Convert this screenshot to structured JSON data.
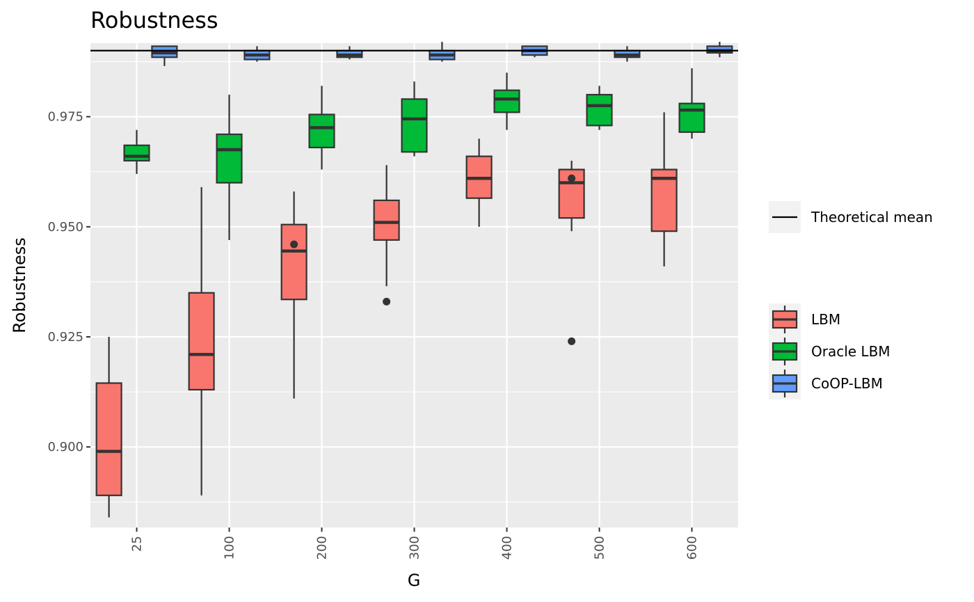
{
  "chart_data": {
    "type": "boxplot",
    "title": "Robustness",
    "xlabel": "G",
    "ylabel": "Robustness",
    "ylim": [
      0.8817,
      0.9917
    ],
    "yticks": [
      "0.900",
      "0.925",
      "0.950",
      "0.975"
    ],
    "categories": [
      "25",
      "100",
      "200",
      "300",
      "400",
      "500",
      "600"
    ],
    "reference_line": {
      "label": "Theoretical mean",
      "value": 0.99
    },
    "series": [
      {
        "name": "LBM",
        "color": "#f8766d",
        "boxes": [
          {
            "category": "25",
            "whisker_low": 0.884,
            "q1": 0.889,
            "median": 0.899,
            "q3": 0.9145,
            "whisker_high": 0.925,
            "outliers": []
          },
          {
            "category": "100",
            "whisker_low": 0.889,
            "q1": 0.913,
            "median": 0.921,
            "q3": 0.935,
            "whisker_high": 0.959,
            "outliers": []
          },
          {
            "category": "200",
            "whisker_low": 0.911,
            "q1": 0.9335,
            "median": 0.9445,
            "q3": 0.9505,
            "whisker_high": 0.958,
            "outliers": [
              0.946
            ]
          },
          {
            "category": "300",
            "whisker_low": 0.9365,
            "q1": 0.947,
            "median": 0.951,
            "q3": 0.956,
            "whisker_high": 0.964,
            "outliers": [
              0.933
            ]
          },
          {
            "category": "400",
            "whisker_low": 0.95,
            "q1": 0.9565,
            "median": 0.961,
            "q3": 0.966,
            "whisker_high": 0.97,
            "outliers": []
          },
          {
            "category": "500",
            "whisker_low": 0.949,
            "q1": 0.952,
            "median": 0.96,
            "q3": 0.963,
            "whisker_high": 0.965,
            "outliers": [
              0.924,
              0.961
            ]
          },
          {
            "category": "600",
            "whisker_low": 0.941,
            "q1": 0.949,
            "median": 0.961,
            "q3": 0.963,
            "whisker_high": 0.976,
            "outliers": []
          }
        ]
      },
      {
        "name": "Oracle LBM",
        "color": "#00ba38",
        "boxes": [
          {
            "category": "25",
            "whisker_low": 0.962,
            "q1": 0.965,
            "median": 0.966,
            "q3": 0.9685,
            "whisker_high": 0.972,
            "outliers": []
          },
          {
            "category": "100",
            "whisker_low": 0.947,
            "q1": 0.96,
            "median": 0.9675,
            "q3": 0.971,
            "whisker_high": 0.98,
            "outliers": []
          },
          {
            "category": "200",
            "whisker_low": 0.963,
            "q1": 0.968,
            "median": 0.9725,
            "q3": 0.9755,
            "whisker_high": 0.982,
            "outliers": []
          },
          {
            "category": "300",
            "whisker_low": 0.966,
            "q1": 0.967,
            "median": 0.9745,
            "q3": 0.979,
            "whisker_high": 0.983,
            "outliers": []
          },
          {
            "category": "400",
            "whisker_low": 0.972,
            "q1": 0.976,
            "median": 0.979,
            "q3": 0.981,
            "whisker_high": 0.985,
            "outliers": []
          },
          {
            "category": "500",
            "whisker_low": 0.972,
            "q1": 0.973,
            "median": 0.9775,
            "q3": 0.98,
            "whisker_high": 0.982,
            "outliers": []
          },
          {
            "category": "600",
            "whisker_low": 0.97,
            "q1": 0.9715,
            "median": 0.9765,
            "q3": 0.978,
            "whisker_high": 0.986,
            "outliers": []
          }
        ]
      },
      {
        "name": "CoOP-LBM",
        "color": "#619cff",
        "boxes": [
          {
            "category": "25",
            "whisker_low": 0.9865,
            "q1": 0.9885,
            "median": 0.9895,
            "q3": 0.991,
            "whisker_high": 0.991,
            "outliers": []
          },
          {
            "category": "100",
            "whisker_low": 0.9875,
            "q1": 0.988,
            "median": 0.989,
            "q3": 0.99,
            "whisker_high": 0.991,
            "outliers": []
          },
          {
            "category": "200",
            "whisker_low": 0.988,
            "q1": 0.9885,
            "median": 0.989,
            "q3": 0.99,
            "whisker_high": 0.991,
            "outliers": []
          },
          {
            "category": "300",
            "whisker_low": 0.9875,
            "q1": 0.988,
            "median": 0.989,
            "q3": 0.99,
            "whisker_high": 0.992,
            "outliers": []
          },
          {
            "category": "400",
            "whisker_low": 0.9885,
            "q1": 0.989,
            "median": 0.99,
            "q3": 0.991,
            "whisker_high": 0.991,
            "outliers": []
          },
          {
            "category": "500",
            "whisker_low": 0.9875,
            "q1": 0.9885,
            "median": 0.989,
            "q3": 0.99,
            "whisker_high": 0.991,
            "outliers": []
          },
          {
            "category": "600",
            "whisker_low": 0.9885,
            "q1": 0.9895,
            "median": 0.99,
            "q3": 0.991,
            "whisker_high": 0.992,
            "outliers": []
          }
        ]
      }
    ]
  }
}
